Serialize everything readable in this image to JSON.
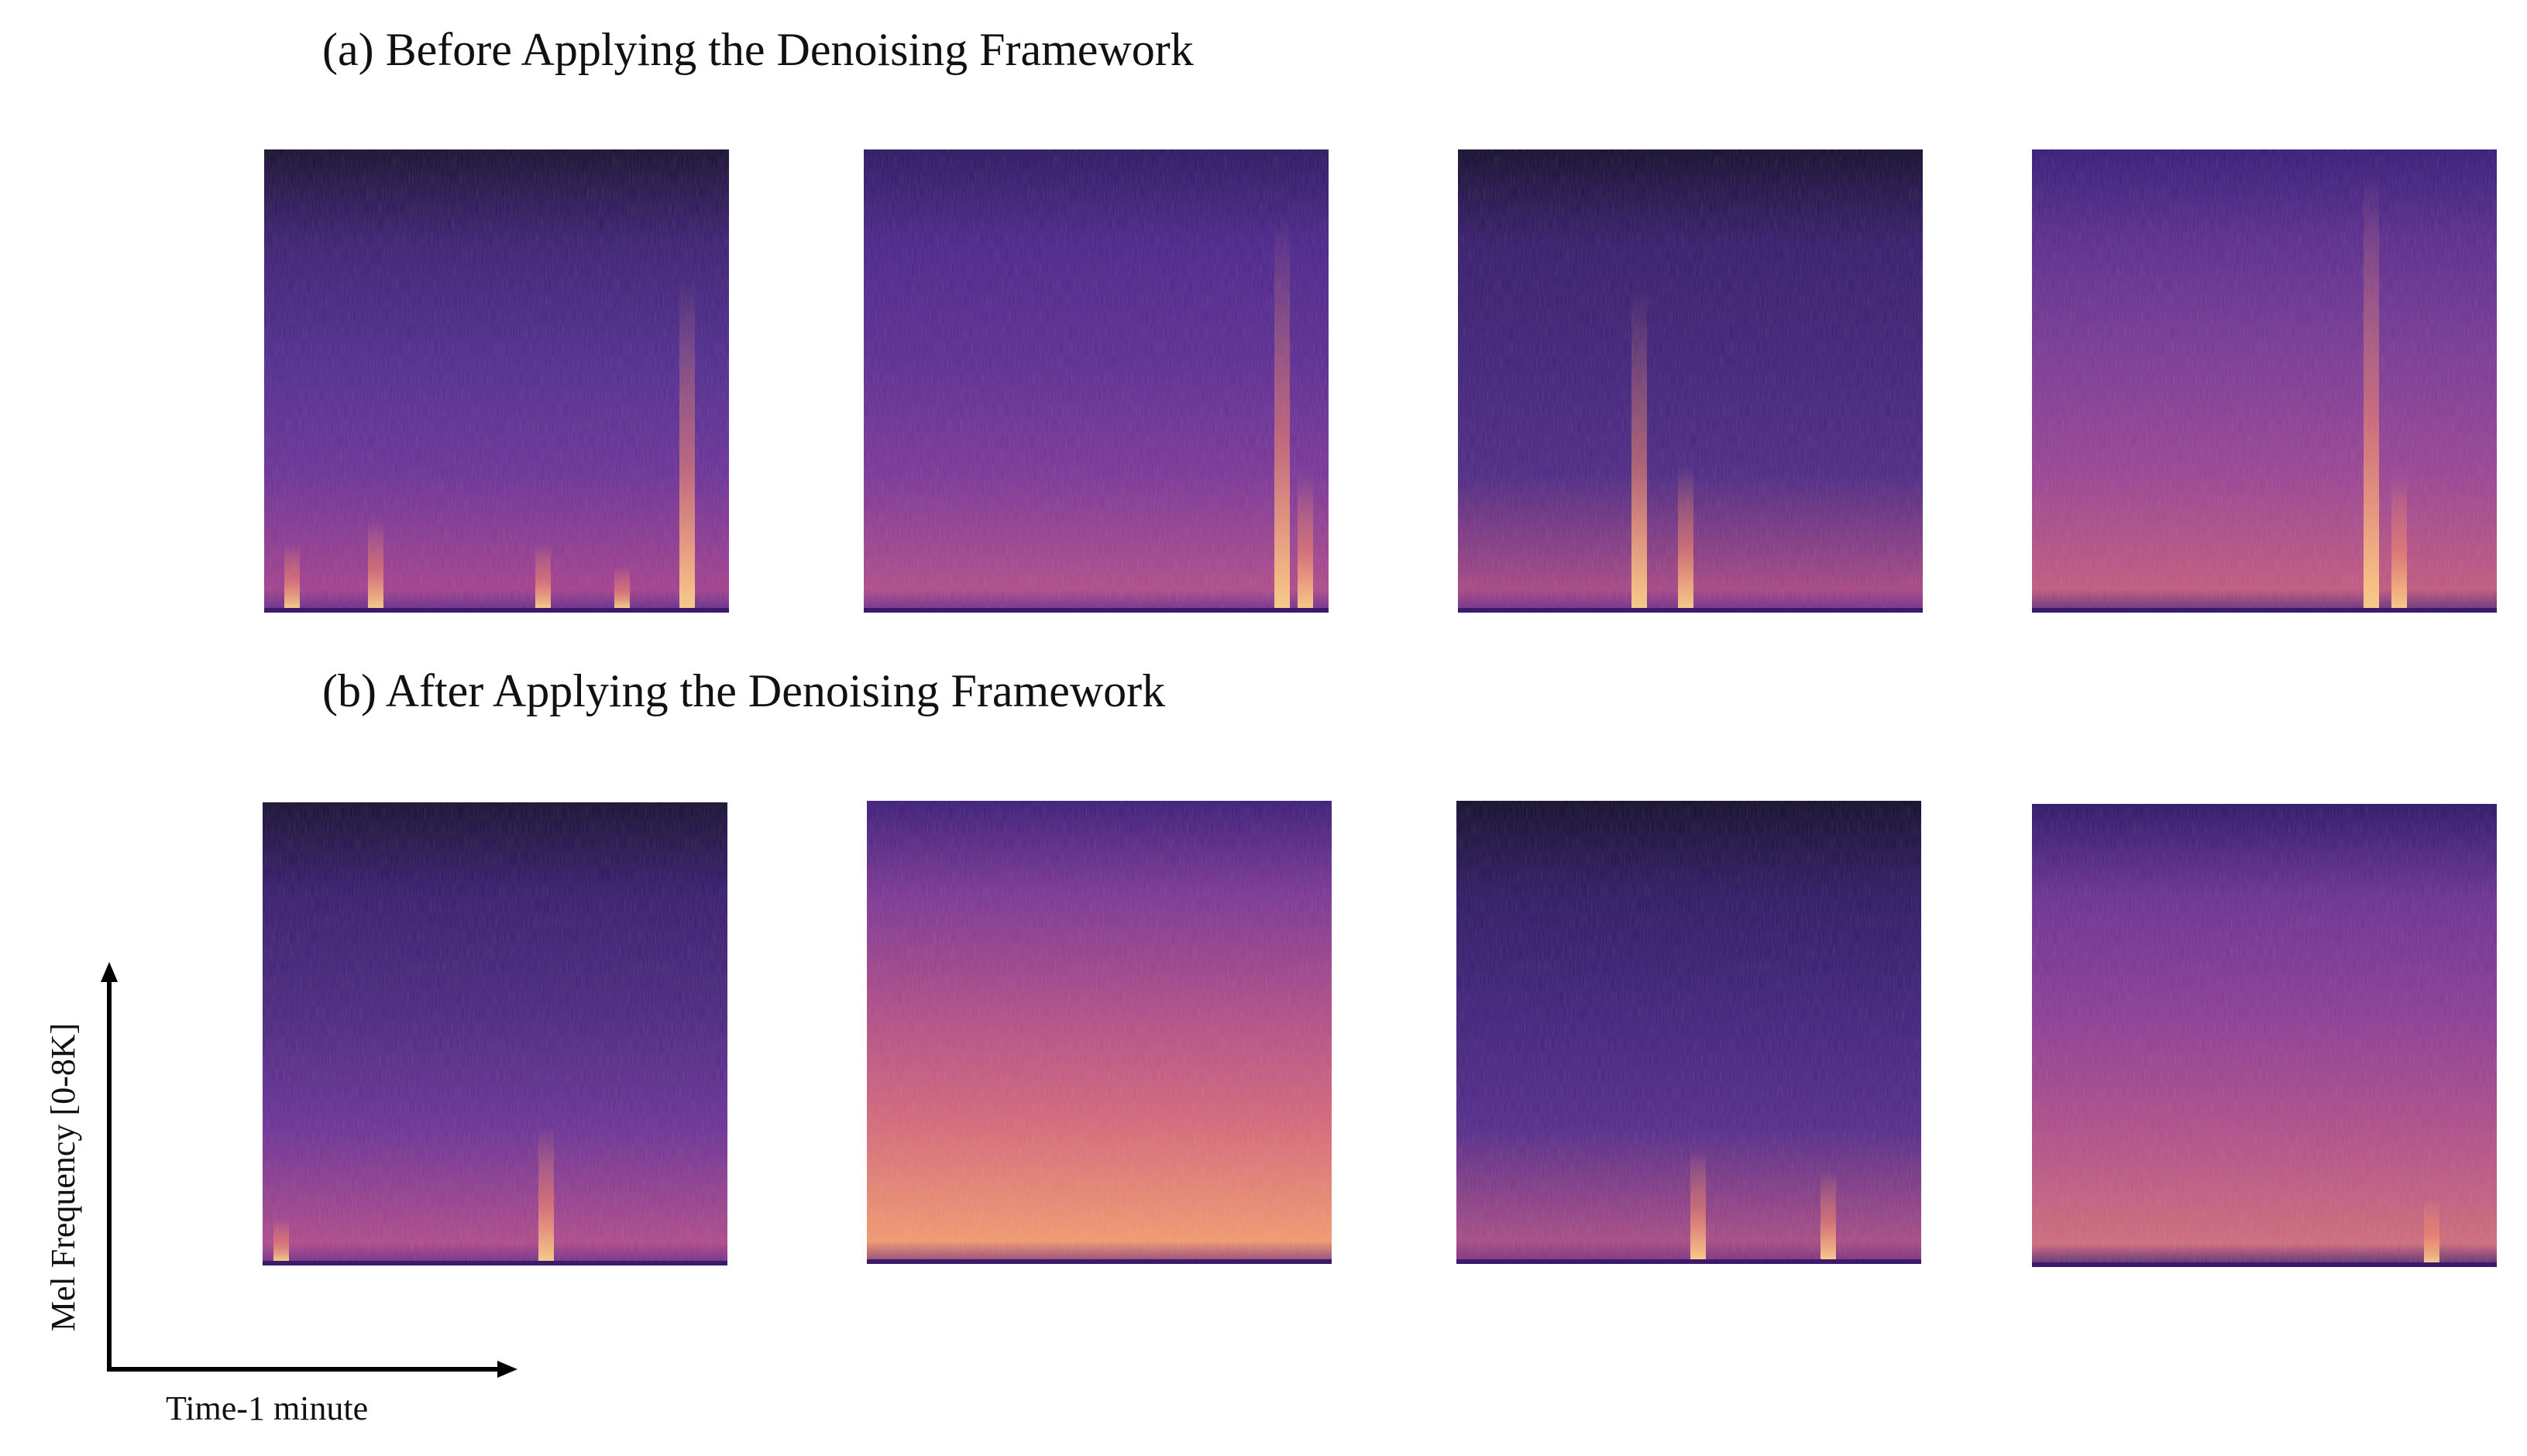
{
  "title_a": "(a) Before Applying  the Denoising  Framework",
  "title_b": "(b) After Applying  the Denoising  Framework",
  "y_axis_label": "Mel Frequency [0-8K]",
  "x_axis_label": "Time-1  minute"
}
